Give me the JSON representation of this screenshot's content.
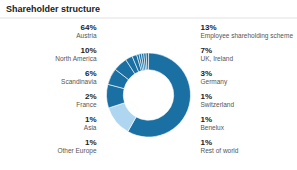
{
  "chart_data": {
    "type": "pie",
    "title": "Shareholder structure",
    "categories": [
      "Austria",
      "Employee shareholding scheme",
      "North America",
      "UK, Ireland",
      "Scandinavia",
      "Germany",
      "France",
      "Switzerland",
      "Asia",
      "Benelux",
      "Other Europe",
      "Rest of world"
    ],
    "values": [
      64,
      13,
      10,
      7,
      6,
      3,
      2,
      1,
      1,
      1,
      1,
      1
    ],
    "value_labels": [
      "64%",
      "13%",
      "10%",
      "7%",
      "6%",
      "3%",
      "2%",
      "1%",
      "1%",
      "1%",
      "1%",
      "1%"
    ],
    "colors": [
      "#1a6fa3",
      "#aed6f1",
      "#1a6fa3",
      "#1a6fa3",
      "#1a6fa3",
      "#1a6fa3",
      "#1a6fa3",
      "#1a6fa3",
      "#1a6fa3",
      "#1a6fa3",
      "#1a6fa3",
      "#1a6fa3"
    ],
    "data_labels": true
  }
}
